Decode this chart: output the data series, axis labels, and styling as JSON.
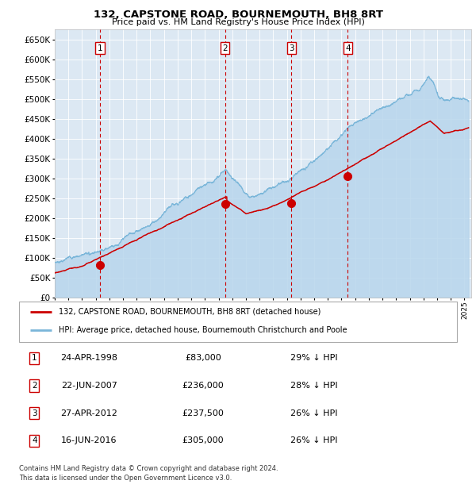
{
  "title": "132, CAPSTONE ROAD, BOURNEMOUTH, BH8 8RT",
  "subtitle": "Price paid vs. HM Land Registry's House Price Index (HPI)",
  "bg_color": "#dce8f3",
  "hpi_color": "#7ab6d9",
  "hpi_fill_color": "#b8d6ec",
  "price_color": "#cc0000",
  "marker_color": "#cc0000",
  "vline_color": "#cc0000",
  "sale_points": [
    {
      "date_year": 1998.31,
      "price": 83000,
      "label": "1"
    },
    {
      "date_year": 2007.47,
      "price": 236000,
      "label": "2"
    },
    {
      "date_year": 2012.32,
      "price": 237500,
      "label": "3"
    },
    {
      "date_year": 2016.46,
      "price": 305000,
      "label": "4"
    }
  ],
  "legend_entries": [
    {
      "label": "132, CAPSTONE ROAD, BOURNEMOUTH, BH8 8RT (detached house)",
      "color": "#cc0000"
    },
    {
      "label": "HPI: Average price, detached house, Bournemouth Christchurch and Poole",
      "color": "#7ab6d9"
    }
  ],
  "table_rows": [
    {
      "num": "1",
      "date": "24-APR-1998",
      "price": "£83,000",
      "hpi": "29% ↓ HPI"
    },
    {
      "num": "2",
      "date": "22-JUN-2007",
      "price": "£236,000",
      "hpi": "28% ↓ HPI"
    },
    {
      "num": "3",
      "date": "27-APR-2012",
      "price": "£237,500",
      "hpi": "26% ↓ HPI"
    },
    {
      "num": "4",
      "date": "16-JUN-2016",
      "price": "£305,000",
      "hpi": "26% ↓ HPI"
    }
  ],
  "footnote": "Contains HM Land Registry data © Crown copyright and database right 2024.\nThis data is licensed under the Open Government Licence v3.0.",
  "ylim": [
    0,
    675000
  ],
  "yticks": [
    0,
    50000,
    100000,
    150000,
    200000,
    250000,
    300000,
    350000,
    400000,
    450000,
    500000,
    550000,
    600000,
    650000
  ],
  "xlim_start": 1995.0,
  "xlim_end": 2025.5
}
